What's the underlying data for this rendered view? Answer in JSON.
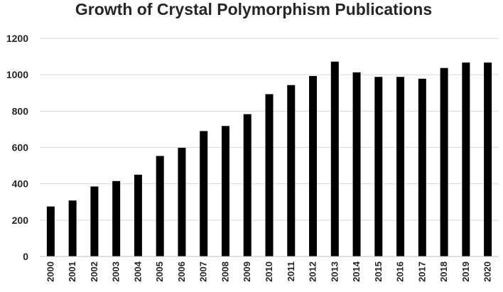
{
  "chart_data": {
    "type": "bar",
    "title": "Growth of Crystal Polymorphism Publications",
    "xlabel": "",
    "ylabel": "",
    "categories": [
      "2000",
      "2001",
      "2002",
      "2003",
      "2004",
      "2005",
      "2006",
      "2007",
      "2008",
      "2009",
      "2010",
      "2011",
      "2012",
      "2013",
      "2014",
      "2015",
      "2016",
      "2017",
      "2018",
      "2019",
      "2020"
    ],
    "values": [
      275,
      308,
      385,
      415,
      450,
      553,
      598,
      690,
      718,
      783,
      893,
      943,
      993,
      1072,
      1013,
      988,
      988,
      978,
      1037,
      1067,
      1067
    ],
    "ylim": [
      0,
      1200
    ],
    "yticks": [
      0,
      200,
      400,
      600,
      800,
      1000,
      1200
    ],
    "grid": true,
    "legend": "none",
    "colors": {
      "bar": "#000000",
      "grid": "#d9d9d9",
      "text": "#262626"
    }
  }
}
